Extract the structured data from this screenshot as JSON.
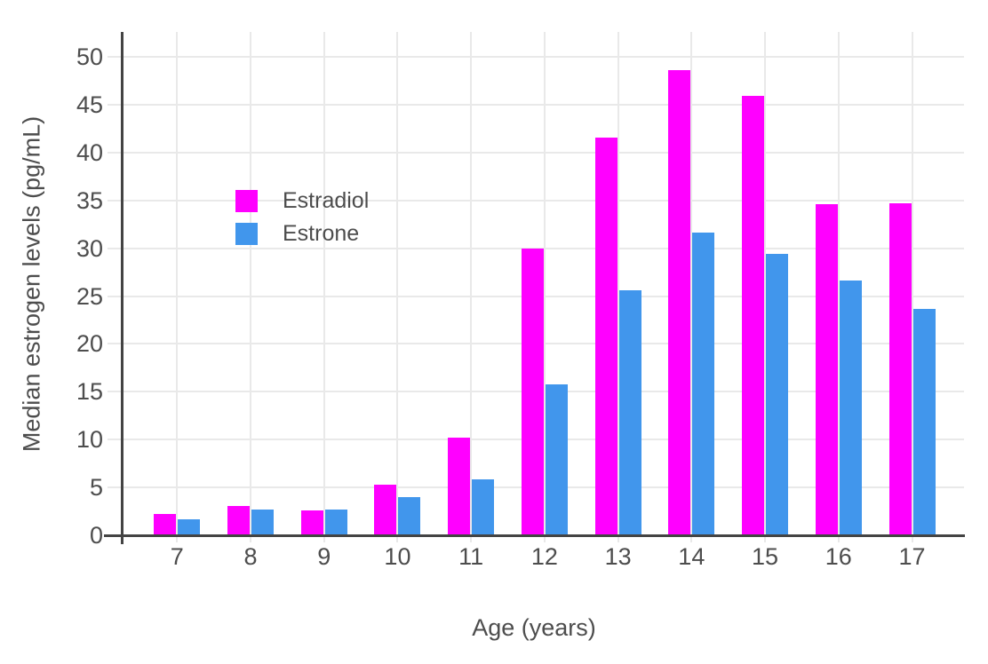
{
  "chart_data": {
    "type": "bar",
    "mode": "grouped",
    "title": "",
    "categories": [
      7,
      8,
      9,
      10,
      11,
      12,
      13,
      14,
      15,
      16,
      17
    ],
    "series": [
      {
        "name": "Estradiol",
        "color": "#FF00FF",
        "values": [
          2.2,
          3.1,
          2.6,
          5.3,
          10.2,
          30.0,
          41.6,
          48.6,
          45.9,
          34.6,
          34.7
        ]
      },
      {
        "name": "Estrone",
        "color": "#4196EC",
        "values": [
          1.7,
          2.7,
          2.65,
          4.0,
          5.8,
          15.8,
          25.6,
          31.6,
          29.4,
          26.6,
          23.7
        ]
      }
    ],
    "xlabel": "Age (years)",
    "ylabel": "Median estrogen levels (pg/mL)",
    "ylim": [
      0,
      52.6
    ],
    "yticks": [
      0,
      5,
      10,
      15,
      20,
      25,
      30,
      35,
      40,
      45,
      50
    ],
    "grid": true,
    "legend_position": "inside-top-left"
  },
  "colors": {
    "grid": "#E9E9E9",
    "axis": "#444444",
    "text": "#4D4D4D",
    "background": "#FFFFFF"
  }
}
